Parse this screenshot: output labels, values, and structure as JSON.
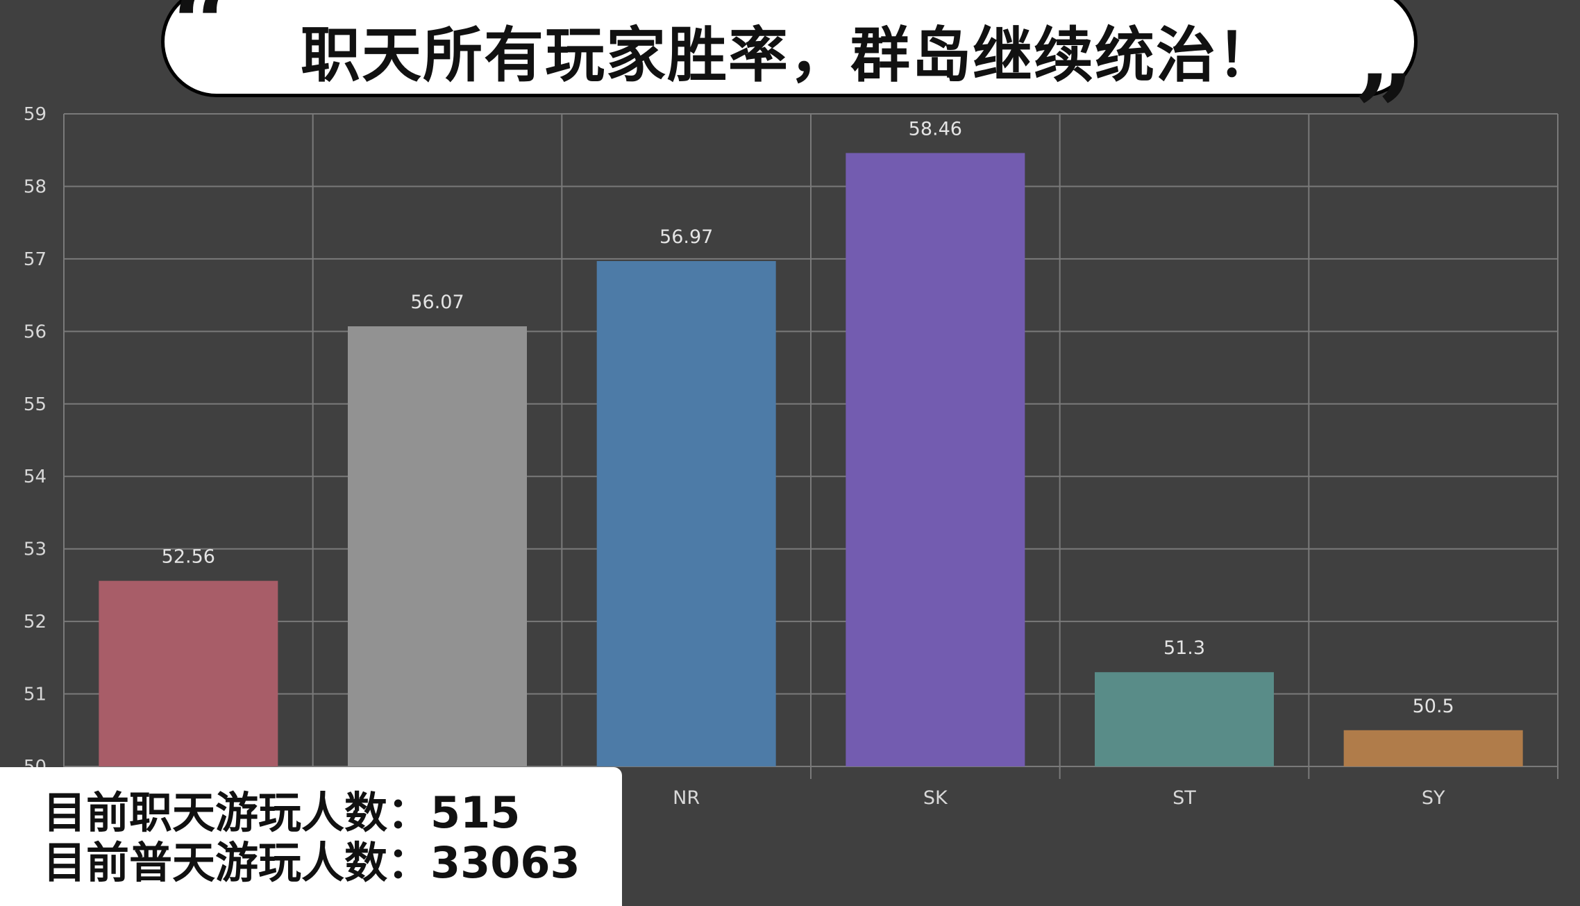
{
  "header": {
    "title": "职天所有玩家胜率，群岛继续统治！",
    "open_quote": "“",
    "close_quote": "”"
  },
  "info": {
    "line1": "目前职天游玩人数：515",
    "line2": "目前普天游玩人数：33063"
  },
  "chart_data": {
    "type": "bar",
    "categories": [
      "",
      "",
      "NR",
      "SK",
      "ST",
      "SY"
    ],
    "values": [
      52.56,
      56.07,
      56.97,
      58.46,
      51.3,
      50.5
    ],
    "value_labels": [
      "52.56",
      "56.07",
      "56.97",
      "58.46",
      "51.3",
      "50.5"
    ],
    "colors": [
      "#a85d68",
      "#929292",
      "#4d7ba7",
      "#735cb0",
      "#598c88",
      "#b07c4a"
    ],
    "yticks": [
      50,
      51,
      52,
      53,
      54,
      55,
      56,
      57,
      58,
      59
    ],
    "ylim": [
      50,
      59
    ],
    "grid": true,
    "title": "",
    "xlabel": "",
    "ylabel": ""
  }
}
